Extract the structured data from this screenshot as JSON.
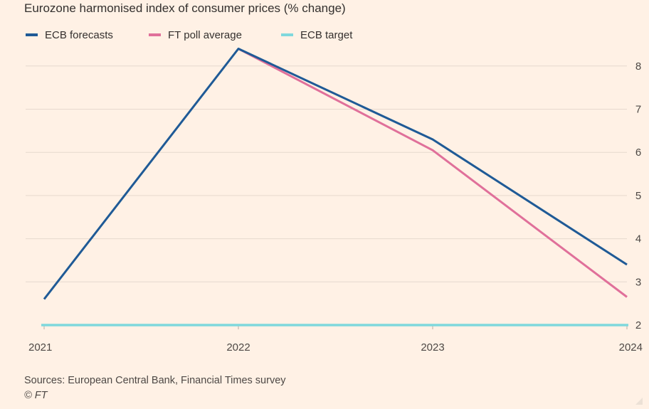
{
  "chart_data": {
    "type": "line",
    "title": "Eurozone harmonised index of consumer prices (% change)",
    "x": [
      "2021",
      "2022",
      "2023",
      "2024"
    ],
    "series": [
      {
        "name": "ECB forecasts",
        "color": "#1f5a96",
        "values": [
          2.6,
          8.4,
          6.3,
          3.4
        ]
      },
      {
        "name": "FT poll average",
        "color": "#e0709a",
        "values": [
          null,
          8.4,
          6.05,
          2.65
        ]
      },
      {
        "name": "ECB target",
        "color": "#7fd8dc",
        "values": [
          2,
          2,
          2,
          2
        ]
      }
    ],
    "yticks": [
      2,
      3,
      4,
      5,
      6,
      7,
      8
    ],
    "ylim": [
      2,
      8.4
    ],
    "yaxis_side": "right",
    "legend_position": "top-left",
    "grid": true,
    "xlabel": "",
    "ylabel": ""
  },
  "footer": {
    "sources": "Sources: European Central Bank, Financial Times survey",
    "credit": "© FT"
  }
}
